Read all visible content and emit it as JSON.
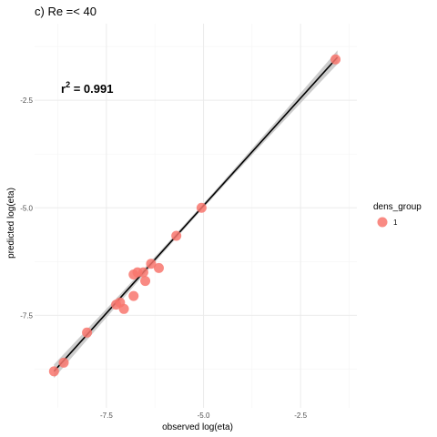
{
  "chart_data": {
    "type": "scatter",
    "title": "c) Re =< 40",
    "xlabel": "observed log(eta)",
    "ylabel": "predicted log(eta)",
    "xlim": [
      -9.35,
      -1.05
    ],
    "ylim": [
      -9.65,
      -0.72
    ],
    "x_ticks": [
      -7.5,
      -5.0,
      -2.5
    ],
    "x_tick_labels": [
      "-7.5",
      "-5.0",
      "-2.5"
    ],
    "y_ticks": [
      -7.5,
      -5.0,
      -2.5
    ],
    "y_tick_labels": [
      "-7.5",
      "-5.0",
      "-2.5"
    ],
    "grid": true,
    "legend": {
      "title": "dens_group",
      "placement": "right",
      "entries": [
        {
          "label": "1",
          "color": "#f8766d"
        }
      ]
    },
    "annotation": {
      "prefix": "r",
      "superscript": "2",
      "text": " = 0.991"
    },
    "fit_line": {
      "x": [
        -8.85,
        -1.55
      ],
      "y": [
        -8.8,
        -1.5
      ],
      "ci_band_width": [
        0.05,
        0.16
      ],
      "color": "#000000",
      "band_color": "#c8c8c8"
    },
    "series": [
      {
        "name": "1",
        "color": "#f8766d",
        "points": [
          {
            "x": -8.85,
            "y": -8.8
          },
          {
            "x": -8.6,
            "y": -8.6
          },
          {
            "x": -8.0,
            "y": -7.9
          },
          {
            "x": -7.25,
            "y": -7.25
          },
          {
            "x": -7.15,
            "y": -7.2
          },
          {
            "x": -7.05,
            "y": -7.35
          },
          {
            "x": -6.8,
            "y": -7.05
          },
          {
            "x": -6.8,
            "y": -6.55
          },
          {
            "x": -6.7,
            "y": -6.5
          },
          {
            "x": -6.55,
            "y": -6.5
          },
          {
            "x": -6.5,
            "y": -6.7
          },
          {
            "x": -6.35,
            "y": -6.3
          },
          {
            "x": -6.15,
            "y": -6.4
          },
          {
            "x": -5.7,
            "y": -5.65
          },
          {
            "x": -5.05,
            "y": -5.0
          },
          {
            "x": -1.6,
            "y": -1.55
          }
        ]
      }
    ]
  }
}
